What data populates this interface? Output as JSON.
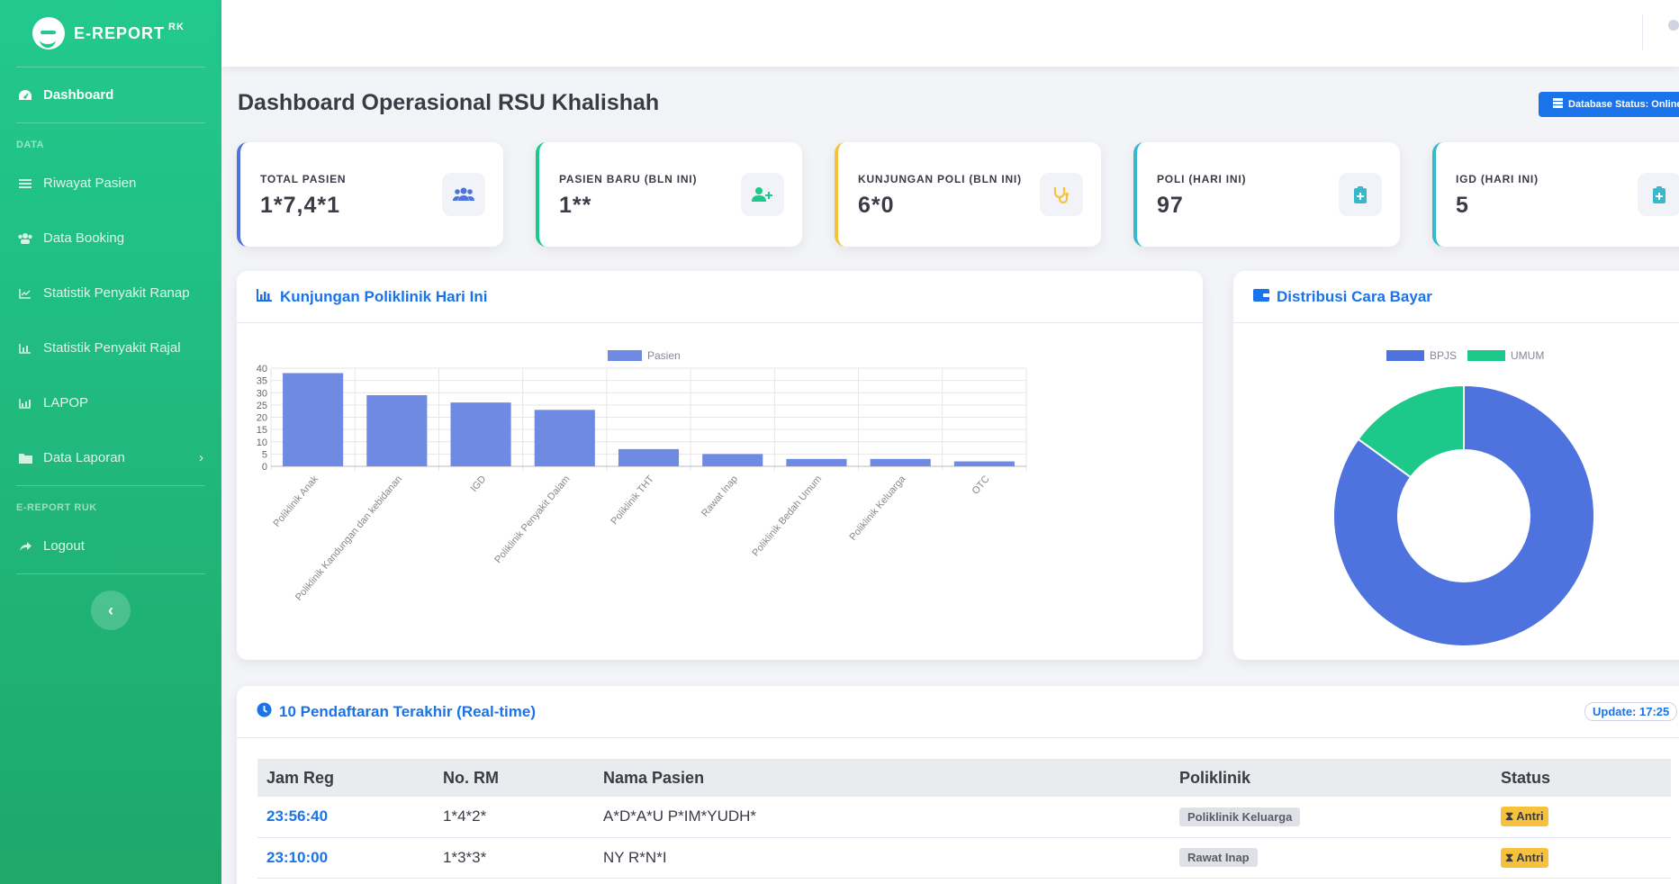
{
  "brand": {
    "name": "E-REPORT",
    "suffix": "RK"
  },
  "sidebar": {
    "dashboard": {
      "label": "Dashboard",
      "icon": "gauge-icon"
    },
    "heading_data": "DATA",
    "items": [
      {
        "label": "Riwayat Pasien",
        "icon": "list-icon"
      },
      {
        "label": "Data Booking",
        "icon": "users-icon"
      },
      {
        "label": "Statistik Penyakit Ranap",
        "icon": "line-chart-icon"
      },
      {
        "label": "Statistik Penyakit Rajal",
        "icon": "bar-chart-icon"
      },
      {
        "label": "LAPOP",
        "icon": "chart-icon"
      },
      {
        "label": "Data Laporan",
        "icon": "folder-icon"
      }
    ],
    "heading_report": "E-REPORT RUK",
    "logout": {
      "label": "Logout",
      "icon": "logout-icon"
    }
  },
  "page": {
    "title": "Dashboard Operasional RSU Khalishah",
    "db_status": "Database Status: Online"
  },
  "cards": [
    {
      "label": "TOTAL PASIEN",
      "value": "1*7,4*1",
      "color": "#4e73df",
      "icon": "users-icon",
      "icon_color": "#4e73df"
    },
    {
      "label": "PASIEN BARU (BLN INI)",
      "value": "1**",
      "color": "#1cc88a",
      "icon": "user-plus-icon",
      "icon_color": "#1cc88a"
    },
    {
      "label": "KUNJUNGAN POLI (BLN INI)",
      "value": "6*0",
      "color": "#f6c23e",
      "icon": "stethoscope-icon",
      "icon_color": "#f6c23e"
    },
    {
      "label": "POLI (HARI INI)",
      "value": "97",
      "color": "#36b9cc",
      "icon": "clipboard-plus-icon",
      "icon_color": "#36b9cc"
    },
    {
      "label": "IGD (HARI INI)",
      "value": "5",
      "color": "#36b9cc",
      "icon": "clipboard-plus-icon",
      "icon_color": "#36b9cc"
    }
  ],
  "bar_panel": {
    "title": "Kunjungan Poliklinik Hari Ini"
  },
  "donut_panel": {
    "title": "Distribusi Cara Bayar"
  },
  "chart_data": [
    {
      "type": "bar",
      "title": "",
      "categories": [
        "Poliklinik Anak",
        "Poliklinik Kandungan dan kebidanan",
        "IGD",
        "Poliklinik Penyakit Dalam",
        "Poliklinik THT",
        "Rawat Inap",
        "Poliklinik Bedah Umum",
        "Poliklinik Keluarga",
        "OTC"
      ],
      "series": [
        {
          "name": "Pasien",
          "values": [
            38,
            29,
            26,
            23,
            7,
            5,
            3,
            3,
            2
          ],
          "color": "#6f8ae3"
        }
      ],
      "ylim": [
        0,
        40
      ],
      "yticks": [
        0,
        5,
        10,
        15,
        20,
        25,
        30,
        35,
        40
      ],
      "grid": true,
      "legend": "top-center"
    },
    {
      "type": "pie",
      "donut": true,
      "labels": [
        "BPJS",
        "UMUM"
      ],
      "values": [
        85,
        15
      ],
      "colors": [
        "#4e73df",
        "#1cc88a"
      ],
      "legend": "top-center"
    }
  ],
  "recent": {
    "title": "10 Pendaftaran Terakhir (Real-time)",
    "update": "Update: 17:25",
    "columns": [
      "Jam Reg",
      "No. RM",
      "Nama Pasien",
      "Poliklinik",
      "Status"
    ],
    "rows": [
      {
        "time": "23:56:40",
        "rm": "1*4*2*",
        "name": "A*D*A*U P*IM*YUDH*",
        "poli": "Poliklinik Keluarga",
        "status": "Antri"
      },
      {
        "time": "23:10:00",
        "rm": "1*3*3*",
        "name": "NY R*N*I",
        "poli": "Rawat Inap",
        "status": "Antri"
      }
    ]
  }
}
